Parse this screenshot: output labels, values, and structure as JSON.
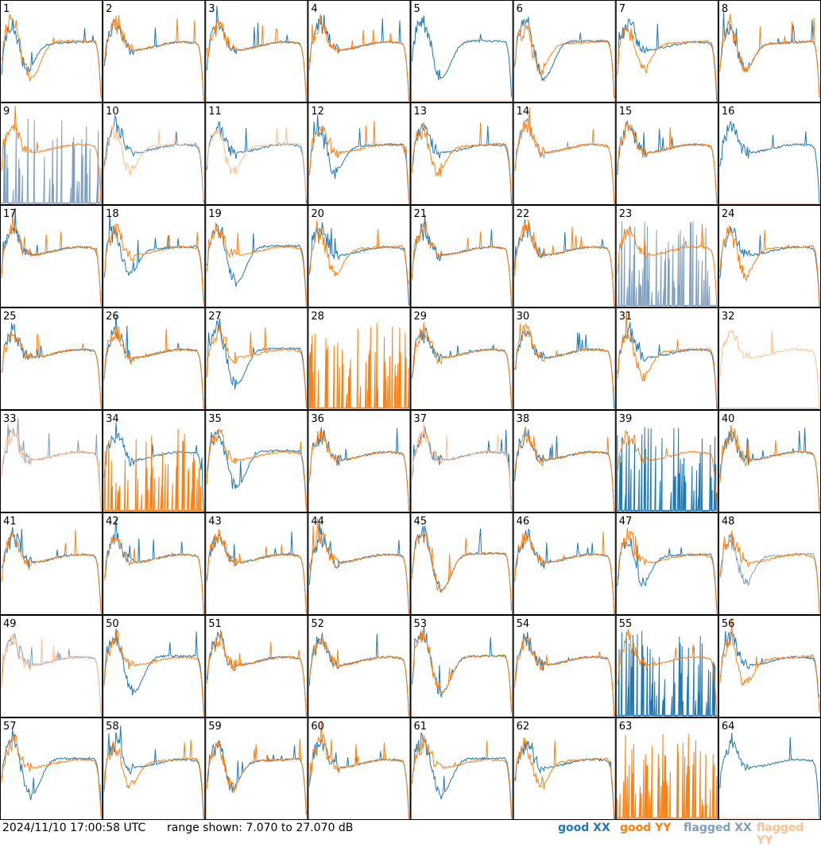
{
  "footer": {
    "timestamp": "2024/11/10 17:00:58 UTC",
    "range_text": "range shown: 7.070 to 27.070 dB",
    "legend": {
      "good_xx": "good XX",
      "good_yy": "good YY",
      "flagged_xx": "flagged XX",
      "flagged_yy": "flagged YY"
    }
  },
  "colors": {
    "good_xx": "#1f77b4",
    "good_yy": "#ff7f0e",
    "flagged_xx": "#7f9fbf",
    "flagged_yy": "#ffbf8f",
    "grid_line": "#000000"
  },
  "chart_data": {
    "type": "line",
    "title": "",
    "xlabel": "",
    "ylabel": "",
    "ylim": [
      7.07,
      27.07
    ],
    "grid": {
      "rows": 8,
      "cols": 8
    },
    "series_types": [
      "XX",
      "YY"
    ],
    "panels": [
      {
        "id": "1",
        "xx": "good",
        "yy": "good",
        "xx_profile": "A",
        "yy_profile": "C"
      },
      {
        "id": "2",
        "xx": "good",
        "yy": "good",
        "xx_profile": "B",
        "yy_profile": "B"
      },
      {
        "id": "3",
        "xx": "good",
        "yy": "good",
        "xx_profile": "B",
        "yy_profile": "B"
      },
      {
        "id": "4",
        "xx": "good",
        "yy": "good",
        "xx_profile": "B",
        "yy_profile": "B"
      },
      {
        "id": "5",
        "xx": "good",
        "yy": "flagged",
        "xx_profile": "C",
        "yy_profile": "dead"
      },
      {
        "id": "6",
        "xx": "good",
        "yy": "good",
        "xx_profile": "C",
        "yy_profile": "A"
      },
      {
        "id": "7",
        "xx": "good",
        "yy": "good",
        "xx_profile": "B",
        "yy_profile": "A"
      },
      {
        "id": "8",
        "xx": "good",
        "yy": "good",
        "xx_profile": "A",
        "yy_profile": "A"
      },
      {
        "id": "9",
        "xx": "flagged",
        "yy": "good",
        "xx_profile": "spikes",
        "yy_profile": "B"
      },
      {
        "id": "10",
        "xx": "good",
        "yy": "flagged",
        "xx_profile": "B",
        "yy_profile": "A"
      },
      {
        "id": "11",
        "xx": "good",
        "yy": "flagged",
        "xx_profile": "B",
        "yy_profile": "A"
      },
      {
        "id": "12",
        "xx": "good",
        "yy": "good",
        "xx_profile": "A",
        "yy_profile": "B"
      },
      {
        "id": "13",
        "xx": "good",
        "yy": "good",
        "xx_profile": "B",
        "yy_profile": "A"
      },
      {
        "id": "14",
        "xx": "flagged",
        "yy": "good",
        "xx_profile": "B",
        "yy_profile": "B"
      },
      {
        "id": "15",
        "xx": "good",
        "yy": "good",
        "xx_profile": "B",
        "yy_profile": "B"
      },
      {
        "id": "16",
        "xx": "good",
        "yy": "flagged",
        "xx_profile": "B",
        "yy_profile": "dead"
      },
      {
        "id": "17",
        "xx": "good",
        "yy": "good",
        "xx_profile": "B",
        "yy_profile": "B"
      },
      {
        "id": "18",
        "xx": "good",
        "yy": "good",
        "xx_profile": "A",
        "yy_profile": "B"
      },
      {
        "id": "19",
        "xx": "good",
        "yy": "good",
        "xx_profile": "C",
        "yy_profile": "B"
      },
      {
        "id": "20",
        "xx": "good",
        "yy": "good",
        "xx_profile": "B",
        "yy_profile": "A"
      },
      {
        "id": "21",
        "xx": "good",
        "yy": "good",
        "xx_profile": "B",
        "yy_profile": "B"
      },
      {
        "id": "22",
        "xx": "good",
        "yy": "good",
        "xx_profile": "B",
        "yy_profile": "B"
      },
      {
        "id": "23",
        "xx": "flagged",
        "yy": "good",
        "xx_profile": "spikes",
        "yy_profile": "B"
      },
      {
        "id": "24",
        "xx": "good",
        "yy": "good",
        "xx_profile": "B",
        "yy_profile": "A"
      },
      {
        "id": "25",
        "xx": "good",
        "yy": "good",
        "xx_profile": "B",
        "yy_profile": "B"
      },
      {
        "id": "26",
        "xx": "good",
        "yy": "good",
        "xx_profile": "B",
        "yy_profile": "B"
      },
      {
        "id": "27",
        "xx": "good",
        "yy": "good",
        "xx_profile": "C",
        "yy_profile": "B"
      },
      {
        "id": "28",
        "xx": "flagged",
        "yy": "good",
        "xx_profile": "dead",
        "yy_profile": "spikes"
      },
      {
        "id": "29",
        "xx": "good",
        "yy": "good",
        "xx_profile": "B",
        "yy_profile": "B"
      },
      {
        "id": "30",
        "xx": "good",
        "yy": "good",
        "xx_profile": "B",
        "yy_profile": "B"
      },
      {
        "id": "31",
        "xx": "good",
        "yy": "good",
        "xx_profile": "B",
        "yy_profile": "A"
      },
      {
        "id": "32",
        "xx": "flagged",
        "yy": "flagged",
        "xx_profile": "dead",
        "yy_profile": "B"
      },
      {
        "id": "33",
        "xx": "flagged",
        "yy": "flagged",
        "xx_profile": "B",
        "yy_profile": "B"
      },
      {
        "id": "34",
        "xx": "good",
        "yy": "good",
        "xx_profile": "B",
        "yy_profile": "spikes"
      },
      {
        "id": "35",
        "xx": "good",
        "yy": "good",
        "xx_profile": "C",
        "yy_profile": "B"
      },
      {
        "id": "36",
        "xx": "good",
        "yy": "good",
        "xx_profile": "B",
        "yy_profile": "B"
      },
      {
        "id": "37",
        "xx": "good",
        "yy": "flagged",
        "xx_profile": "B",
        "yy_profile": "B"
      },
      {
        "id": "38",
        "xx": "good",
        "yy": "good",
        "xx_profile": "B",
        "yy_profile": "B"
      },
      {
        "id": "39",
        "xx": "good",
        "yy": "good",
        "xx_profile": "spikes",
        "yy_profile": "B"
      },
      {
        "id": "40",
        "xx": "good",
        "yy": "good",
        "xx_profile": "B",
        "yy_profile": "B"
      },
      {
        "id": "41",
        "xx": "good",
        "yy": "good",
        "xx_profile": "B",
        "yy_profile": "B"
      },
      {
        "id": "42",
        "xx": "good",
        "yy": "good",
        "xx_profile": "B",
        "yy_profile": "B"
      },
      {
        "id": "43",
        "xx": "good",
        "yy": "good",
        "xx_profile": "B",
        "yy_profile": "B"
      },
      {
        "id": "44",
        "xx": "good",
        "yy": "good",
        "xx_profile": "B",
        "yy_profile": "B"
      },
      {
        "id": "45",
        "xx": "good",
        "yy": "good",
        "xx_profile": "C",
        "yy_profile": "C"
      },
      {
        "id": "46",
        "xx": "good",
        "yy": "good",
        "xx_profile": "B",
        "yy_profile": "B"
      },
      {
        "id": "47",
        "xx": "good",
        "yy": "good",
        "xx_profile": "A",
        "yy_profile": "B"
      },
      {
        "id": "48",
        "xx": "flagged",
        "yy": "good",
        "xx_profile": "A",
        "yy_profile": "B"
      },
      {
        "id": "49",
        "xx": "flagged",
        "yy": "flagged",
        "xx_profile": "B",
        "yy_profile": "B"
      },
      {
        "id": "50",
        "xx": "good",
        "yy": "good",
        "xx_profile": "C",
        "yy_profile": "B"
      },
      {
        "id": "51",
        "xx": "good",
        "yy": "good",
        "xx_profile": "B",
        "yy_profile": "B"
      },
      {
        "id": "52",
        "xx": "good",
        "yy": "good",
        "xx_profile": "B",
        "yy_profile": "B"
      },
      {
        "id": "53",
        "xx": "good",
        "yy": "good",
        "xx_profile": "C",
        "yy_profile": "C"
      },
      {
        "id": "54",
        "xx": "good",
        "yy": "good",
        "xx_profile": "B",
        "yy_profile": "B"
      },
      {
        "id": "55",
        "xx": "good",
        "yy": "good",
        "xx_profile": "spikes",
        "yy_profile": "B"
      },
      {
        "id": "56",
        "xx": "good",
        "yy": "good",
        "xx_profile": "B",
        "yy_profile": "A"
      },
      {
        "id": "57",
        "xx": "good",
        "yy": "good",
        "xx_profile": "C",
        "yy_profile": "B"
      },
      {
        "id": "58",
        "xx": "good",
        "yy": "good",
        "xx_profile": "B",
        "yy_profile": "A"
      },
      {
        "id": "59",
        "xx": "good",
        "yy": "good",
        "xx_profile": "A",
        "yy_profile": "A"
      },
      {
        "id": "60",
        "xx": "good",
        "yy": "good",
        "xx_profile": "B",
        "yy_profile": "B"
      },
      {
        "id": "61",
        "xx": "good",
        "yy": "good",
        "xx_profile": "C",
        "yy_profile": "B"
      },
      {
        "id": "62",
        "xx": "good",
        "yy": "good",
        "xx_profile": "B",
        "yy_profile": "A"
      },
      {
        "id": "63",
        "xx": "flagged",
        "yy": "good",
        "xx_profile": "dead",
        "yy_profile": "spikes"
      },
      {
        "id": "64",
        "xx": "good",
        "yy": "flagged",
        "xx_profile": "B",
        "yy_profile": "dead"
      }
    ]
  }
}
